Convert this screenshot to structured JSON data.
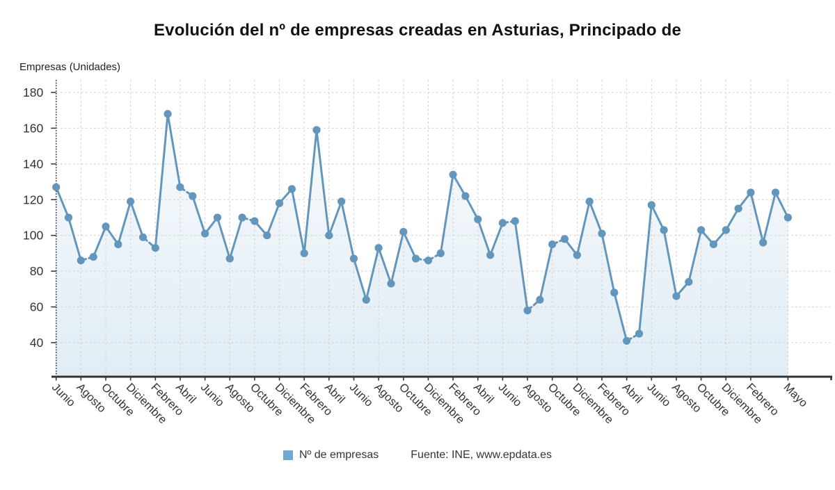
{
  "title": "Evolución del nº de empresas creadas en Asturias, Principado de",
  "y_axis_unit_label": "Empresas (Unidades)",
  "legend": {
    "series_label": "Nº de empresas",
    "source_label": "Fuente: INE, www.epdata.es"
  },
  "colors": {
    "line": "#6396bd",
    "marker": "#6396bd",
    "legend_square": "#74a9cf",
    "grid": "#cccccc",
    "axis": "#333333",
    "tick_text": "#333333",
    "area_top": "rgba(116,169,207,0.05)",
    "area_bottom": "rgba(116,169,207,0.22)"
  },
  "chart_data": {
    "type": "line",
    "series": [
      {
        "name": "Nº de empresas",
        "values": [
          127,
          110,
          86,
          88,
          105,
          95,
          119,
          99,
          93,
          168,
          127,
          122,
          101,
          110,
          87,
          110,
          108,
          100,
          118,
          126,
          90,
          159,
          100,
          119,
          87,
          64,
          93,
          73,
          102,
          87,
          86,
          90,
          134,
          122,
          109,
          89,
          107,
          108,
          58,
          64,
          95,
          98,
          89,
          119,
          101,
          68,
          41,
          45,
          117,
          103,
          66,
          74,
          103,
          95,
          103,
          115,
          124,
          96,
          124,
          110
        ]
      }
    ],
    "x_tick_labels": [
      "Junio",
      "Agosto",
      "Octubre",
      "Diciembre",
      "Febrero",
      "Abril",
      "Junio",
      "Agosto",
      "Octubre",
      "Diciembre",
      "Febrero",
      "Abril",
      "Junio",
      "Agosto",
      "Octubre",
      "Diciembre",
      "Febrero",
      "Abril",
      "Junio",
      "Agosto",
      "Octubre",
      "Diciembre",
      "Febrero",
      "Abril",
      "Junio",
      "Agosto",
      "Octubre",
      "Diciembre",
      "Febrero",
      "Mayo"
    ],
    "x_tick_data_indices": [
      0,
      2,
      4,
      6,
      8,
      10,
      12,
      14,
      16,
      18,
      20,
      22,
      24,
      26,
      28,
      30,
      32,
      34,
      36,
      38,
      40,
      42,
      44,
      46,
      48,
      50,
      52,
      54,
      56,
      59
    ],
    "y_ticks": [
      40,
      60,
      80,
      100,
      120,
      140,
      160,
      180
    ],
    "ylim": [
      21,
      187
    ],
    "ylabel": "Empresas (Unidades)",
    "grid": true,
    "legend_position": "bottom",
    "area_fill": true,
    "marker": "circle",
    "dashed_when_flat": true
  }
}
